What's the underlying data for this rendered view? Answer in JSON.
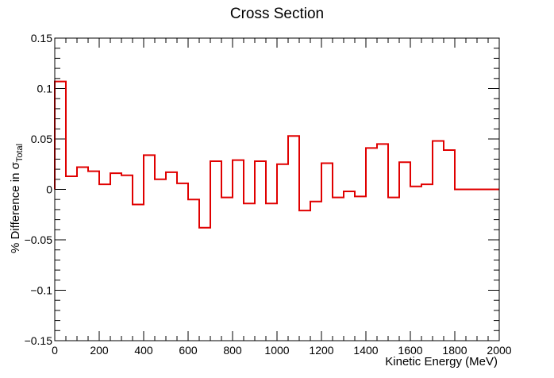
{
  "chart_data": {
    "type": "line",
    "style": "step-histogram",
    "title": "Cross Section",
    "xlabel": "Kinetic Energy (MeV)",
    "ylabel_prefix": "% Difference in ",
    "ylabel_symbol": "σ",
    "ylabel_subscript": "Total",
    "xlim": [
      0,
      2000
    ],
    "ylim": [
      -0.15,
      0.15
    ],
    "x_ticks": [
      0,
      200,
      400,
      600,
      800,
      1000,
      1200,
      1400,
      1600,
      1800,
      2000
    ],
    "x_tick_labels": [
      "0",
      "200",
      "400",
      "600",
      "800",
      "1000",
      "1200",
      "1400",
      "1600",
      "1800",
      "2000"
    ],
    "y_ticks": [
      -0.15,
      -0.1,
      -0.05,
      0,
      0.05,
      0.1,
      0.15
    ],
    "y_tick_labels": [
      "−0.15",
      "−0.1",
      "−0.05",
      "0",
      "0.05",
      "0.1",
      "0.15"
    ],
    "grid": false,
    "line_color": "#e00000",
    "bin_width": 50,
    "bin_edges": [
      0,
      50,
      100,
      150,
      200,
      250,
      300,
      350,
      400,
      450,
      500,
      550,
      600,
      650,
      700,
      750,
      800,
      850,
      900,
      950,
      1000,
      1050,
      1100,
      1150,
      1200,
      1250,
      1300,
      1350,
      1400,
      1450,
      1500,
      1550,
      1600,
      1650,
      1700,
      1750,
      1800,
      1850,
      1900,
      1950,
      2000
    ],
    "values": [
      0.107,
      0.013,
      0.022,
      0.018,
      0.005,
      0.016,
      0.014,
      -0.015,
      0.034,
      0.01,
      0.017,
      0.006,
      -0.01,
      -0.038,
      0.028,
      -0.008,
      0.029,
      -0.014,
      0.028,
      -0.014,
      0.025,
      0.053,
      -0.021,
      -0.012,
      0.026,
      -0.008,
      -0.002,
      -0.007,
      0.041,
      0.045,
      -0.008,
      0.027,
      0.003,
      0.005,
      0.048,
      0.039,
      0.0,
      0.0,
      0.0,
      0.0
    ]
  }
}
